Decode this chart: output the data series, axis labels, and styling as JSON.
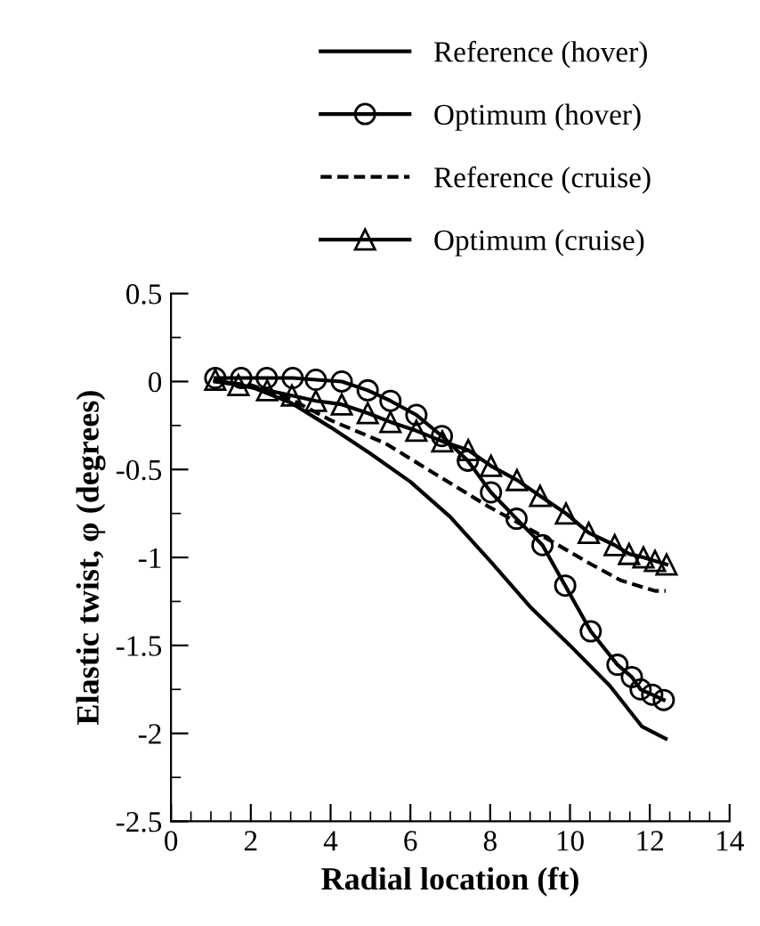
{
  "chart_data": {
    "type": "line",
    "xlabel": "Radial location (ft)",
    "ylabel": "Elastic twist, φ (degrees)",
    "xlim": [
      0,
      14
    ],
    "xticks": [
      0,
      2,
      4,
      6,
      8,
      10,
      12,
      14
    ],
    "ylim": [
      -2.5,
      0.5
    ],
    "yticks": [
      -2.5,
      -2,
      -1.5,
      -1,
      -0.5,
      0,
      0.5
    ],
    "grid": false,
    "legend": "top",
    "series": [
      {
        "name": "Reference (hover)",
        "color": "#000000",
        "line_style": "solid",
        "marker": "none",
        "x": [
          1.1,
          2,
          3,
          4,
          5,
          6,
          7,
          8,
          9,
          10,
          11,
          11.8,
          12.4
        ],
        "values": [
          0,
          -0.03,
          -0.12,
          -0.26,
          -0.41,
          -0.57,
          -0.77,
          -1.02,
          -1.28,
          -1.5,
          -1.73,
          -1.96,
          -2.03
        ]
      },
      {
        "name": "Optimum (hover)",
        "color": "#000000",
        "line_style": "solid",
        "marker": "circle",
        "x": [
          1.11,
          1.76,
          2.4,
          3.05,
          3.63,
          4.28,
          4.93,
          5.5,
          6.15,
          6.79,
          7.44,
          8.02,
          8.66,
          9.31,
          9.88,
          10.52,
          11.19,
          11.55,
          11.77,
          12.06,
          12.35
        ],
        "values": [
          0.02,
          0.02,
          0.02,
          0.02,
          0.01,
          0,
          -0.05,
          -0.11,
          -0.19,
          -0.31,
          -0.45,
          -0.63,
          -0.78,
          -0.93,
          -1.16,
          -1.42,
          -1.61,
          -1.68,
          -1.75,
          -1.78,
          -1.81
        ]
      },
      {
        "name": "Reference (cruise)",
        "color": "#000000",
        "line_style": "dashed",
        "marker": "none",
        "x": [
          1.1,
          2,
          3,
          4,
          5.36,
          6.8,
          7.95,
          9.4,
          10.54,
          11.27,
          12.13,
          12.4
        ],
        "values": [
          0,
          -0.02,
          -0.1,
          -0.22,
          -0.35,
          -0.55,
          -0.71,
          -0.89,
          -1.04,
          -1.13,
          -1.19,
          -1.19
        ]
      },
      {
        "name": "Optimum (cruise)",
        "color": "#000000",
        "line_style": "solid",
        "marker": "triangle",
        "x": [
          1.11,
          1.69,
          2.41,
          3.03,
          3.63,
          4.28,
          4.93,
          5.5,
          6.15,
          6.8,
          7.45,
          8.02,
          8.67,
          9.25,
          9.9,
          10.47,
          11.12,
          11.48,
          11.84,
          12.13,
          12.42
        ],
        "values": [
          0.01,
          -0.02,
          -0.05,
          -0.08,
          -0.11,
          -0.13,
          -0.18,
          -0.23,
          -0.28,
          -0.34,
          -0.39,
          -0.48,
          -0.56,
          -0.65,
          -0.75,
          -0.86,
          -0.93,
          -0.98,
          -1.0,
          -1.02,
          -1.04
        ]
      }
    ]
  }
}
